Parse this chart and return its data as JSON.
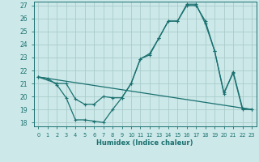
{
  "xlabel": "Humidex (Indice chaleur)",
  "bg_color": "#cce8e8",
  "grid_color": "#aacccc",
  "line_color": "#1a7070",
  "xlim": [
    -0.5,
    23.5
  ],
  "ylim": [
    17.7,
    27.3
  ],
  "yticks": [
    18,
    19,
    20,
    21,
    22,
    23,
    24,
    25,
    26,
    27
  ],
  "xticks": [
    0,
    1,
    2,
    3,
    4,
    5,
    6,
    7,
    8,
    9,
    10,
    11,
    12,
    13,
    14,
    15,
    16,
    17,
    18,
    19,
    20,
    21,
    22,
    23
  ],
  "line1_x": [
    0,
    1,
    2,
    3,
    4,
    5,
    6,
    7,
    8,
    9,
    10,
    11,
    12,
    13,
    14,
    15,
    16,
    17,
    18,
    19,
    20,
    21,
    22,
    23
  ],
  "line1_y": [
    21.5,
    21.4,
    20.9,
    19.9,
    18.2,
    18.2,
    18.1,
    18.0,
    19.0,
    19.9,
    21.0,
    22.9,
    23.2,
    24.5,
    25.8,
    25.8,
    27.1,
    27.1,
    25.6,
    23.5,
    20.3,
    21.8,
    19.0,
    19.0
  ],
  "line2_x": [
    0,
    2,
    3,
    4,
    5,
    6,
    7,
    8,
    9,
    10,
    11,
    12,
    13,
    14,
    15,
    16,
    17,
    18,
    19,
    20,
    21,
    22,
    23
  ],
  "line2_y": [
    21.5,
    21.0,
    21.0,
    19.8,
    19.4,
    19.4,
    20.0,
    19.9,
    19.9,
    21.0,
    22.9,
    23.3,
    24.5,
    25.8,
    25.8,
    27.0,
    27.0,
    25.8,
    23.5,
    20.2,
    21.9,
    19.1,
    19.0
  ],
  "line3_x": [
    0,
    23
  ],
  "line3_y": [
    21.5,
    19.0
  ]
}
